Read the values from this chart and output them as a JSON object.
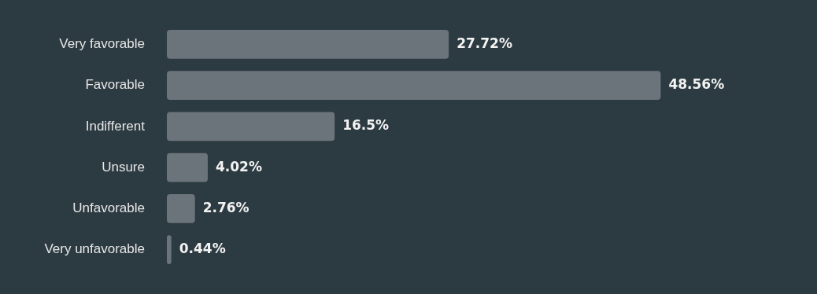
{
  "chart_data": {
    "type": "bar",
    "orientation": "horizontal",
    "categories": [
      "Very favorable",
      "Favorable",
      "Indifferent",
      "Unsure",
      "Unfavorable",
      "Very unfavorable"
    ],
    "values": [
      27.72,
      48.56,
      16.5,
      4.02,
      2.76,
      0.44
    ],
    "value_labels": [
      "27.72%",
      "48.56%",
      "16.5%",
      "4.02%",
      "2.76%",
      "0.44%"
    ],
    "color": "#6b747a",
    "grid": false,
    "legend": false,
    "tick_labels": "y"
  }
}
